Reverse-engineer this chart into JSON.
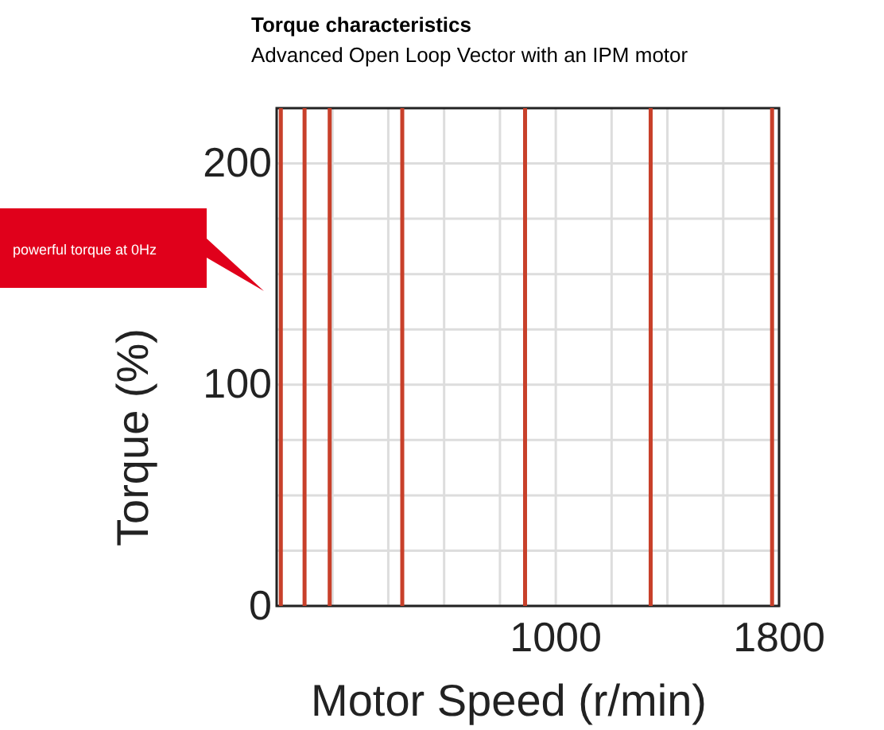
{
  "chart_data": {
    "type": "line",
    "title": "Torque characteristics",
    "subtitle": "Advanced Open Loop Vector with an IPM motor",
    "xlabel": "Motor Speed (r/min)",
    "ylabel": "Torque (%)",
    "xlim": [
      0,
      1800
    ],
    "xticks": [
      {
        "value": 200,
        "label": null
      },
      {
        "value": 400,
        "label": null
      },
      {
        "value": 600,
        "label": null
      },
      {
        "value": 800,
        "label": null
      },
      1000,
      {
        "value": 1200,
        "label": null
      },
      {
        "value": 1400,
        "label": null
      },
      {
        "value": 1600,
        "label": null
      },
      1800
    ],
    "ylim": [
      0,
      225
    ],
    "yticks": [
      0,
      {
        "value": 25,
        "label": null
      },
      {
        "value": 50,
        "label": null
      },
      {
        "value": 75,
        "label": null
      },
      100,
      {
        "value": 125,
        "label": null
      },
      {
        "value": 150,
        "label": null
      },
      {
        "value": 175,
        "label": null
      },
      200
    ],
    "grid": true,
    "line_style": "solid",
    "marker": "none",
    "series": [
      {
        "color": "#c8402a",
        "x": [
          15,
          15
        ],
        "values": [
          0,
          225
        ]
      },
      {
        "color": "#c8402a",
        "x": [
          100,
          100
        ],
        "values": [
          0,
          225
        ]
      },
      {
        "color": "#c8402a",
        "x": [
          190,
          190
        ],
        "values": [
          0,
          225
        ]
      },
      {
        "color": "#c8402a",
        "x": [
          450,
          450
        ],
        "values": [
          0,
          225
        ]
      },
      {
        "color": "#c8402a",
        "x": [
          890,
          890
        ],
        "values": [
          0,
          225
        ]
      },
      {
        "color": "#c8402a",
        "x": [
          1340,
          1340
        ],
        "values": [
          0,
          225
        ]
      },
      {
        "color": "#c8402a",
        "x": [
          1775,
          1775
        ],
        "values": [
          0,
          225
        ]
      }
    ],
    "annotations": [
      "powerful torque at 0Hz"
    ]
  }
}
